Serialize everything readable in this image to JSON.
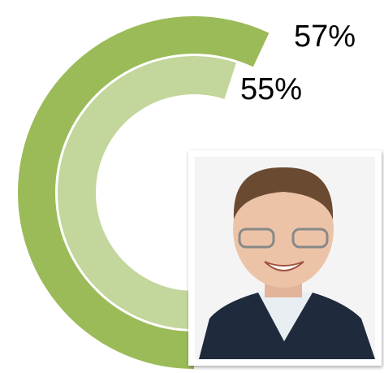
{
  "chart_data": {
    "type": "radial-bar",
    "series": [
      {
        "color": "#9bbb59",
        "values": [
          57
        ],
        "value_labels": [
          "57%"
        ]
      },
      {
        "color": "#c3d69b",
        "values": [
          55
        ],
        "value_labels": [
          "55%"
        ]
      }
    ],
    "ylim": [
      0,
      100
    ]
  }
}
